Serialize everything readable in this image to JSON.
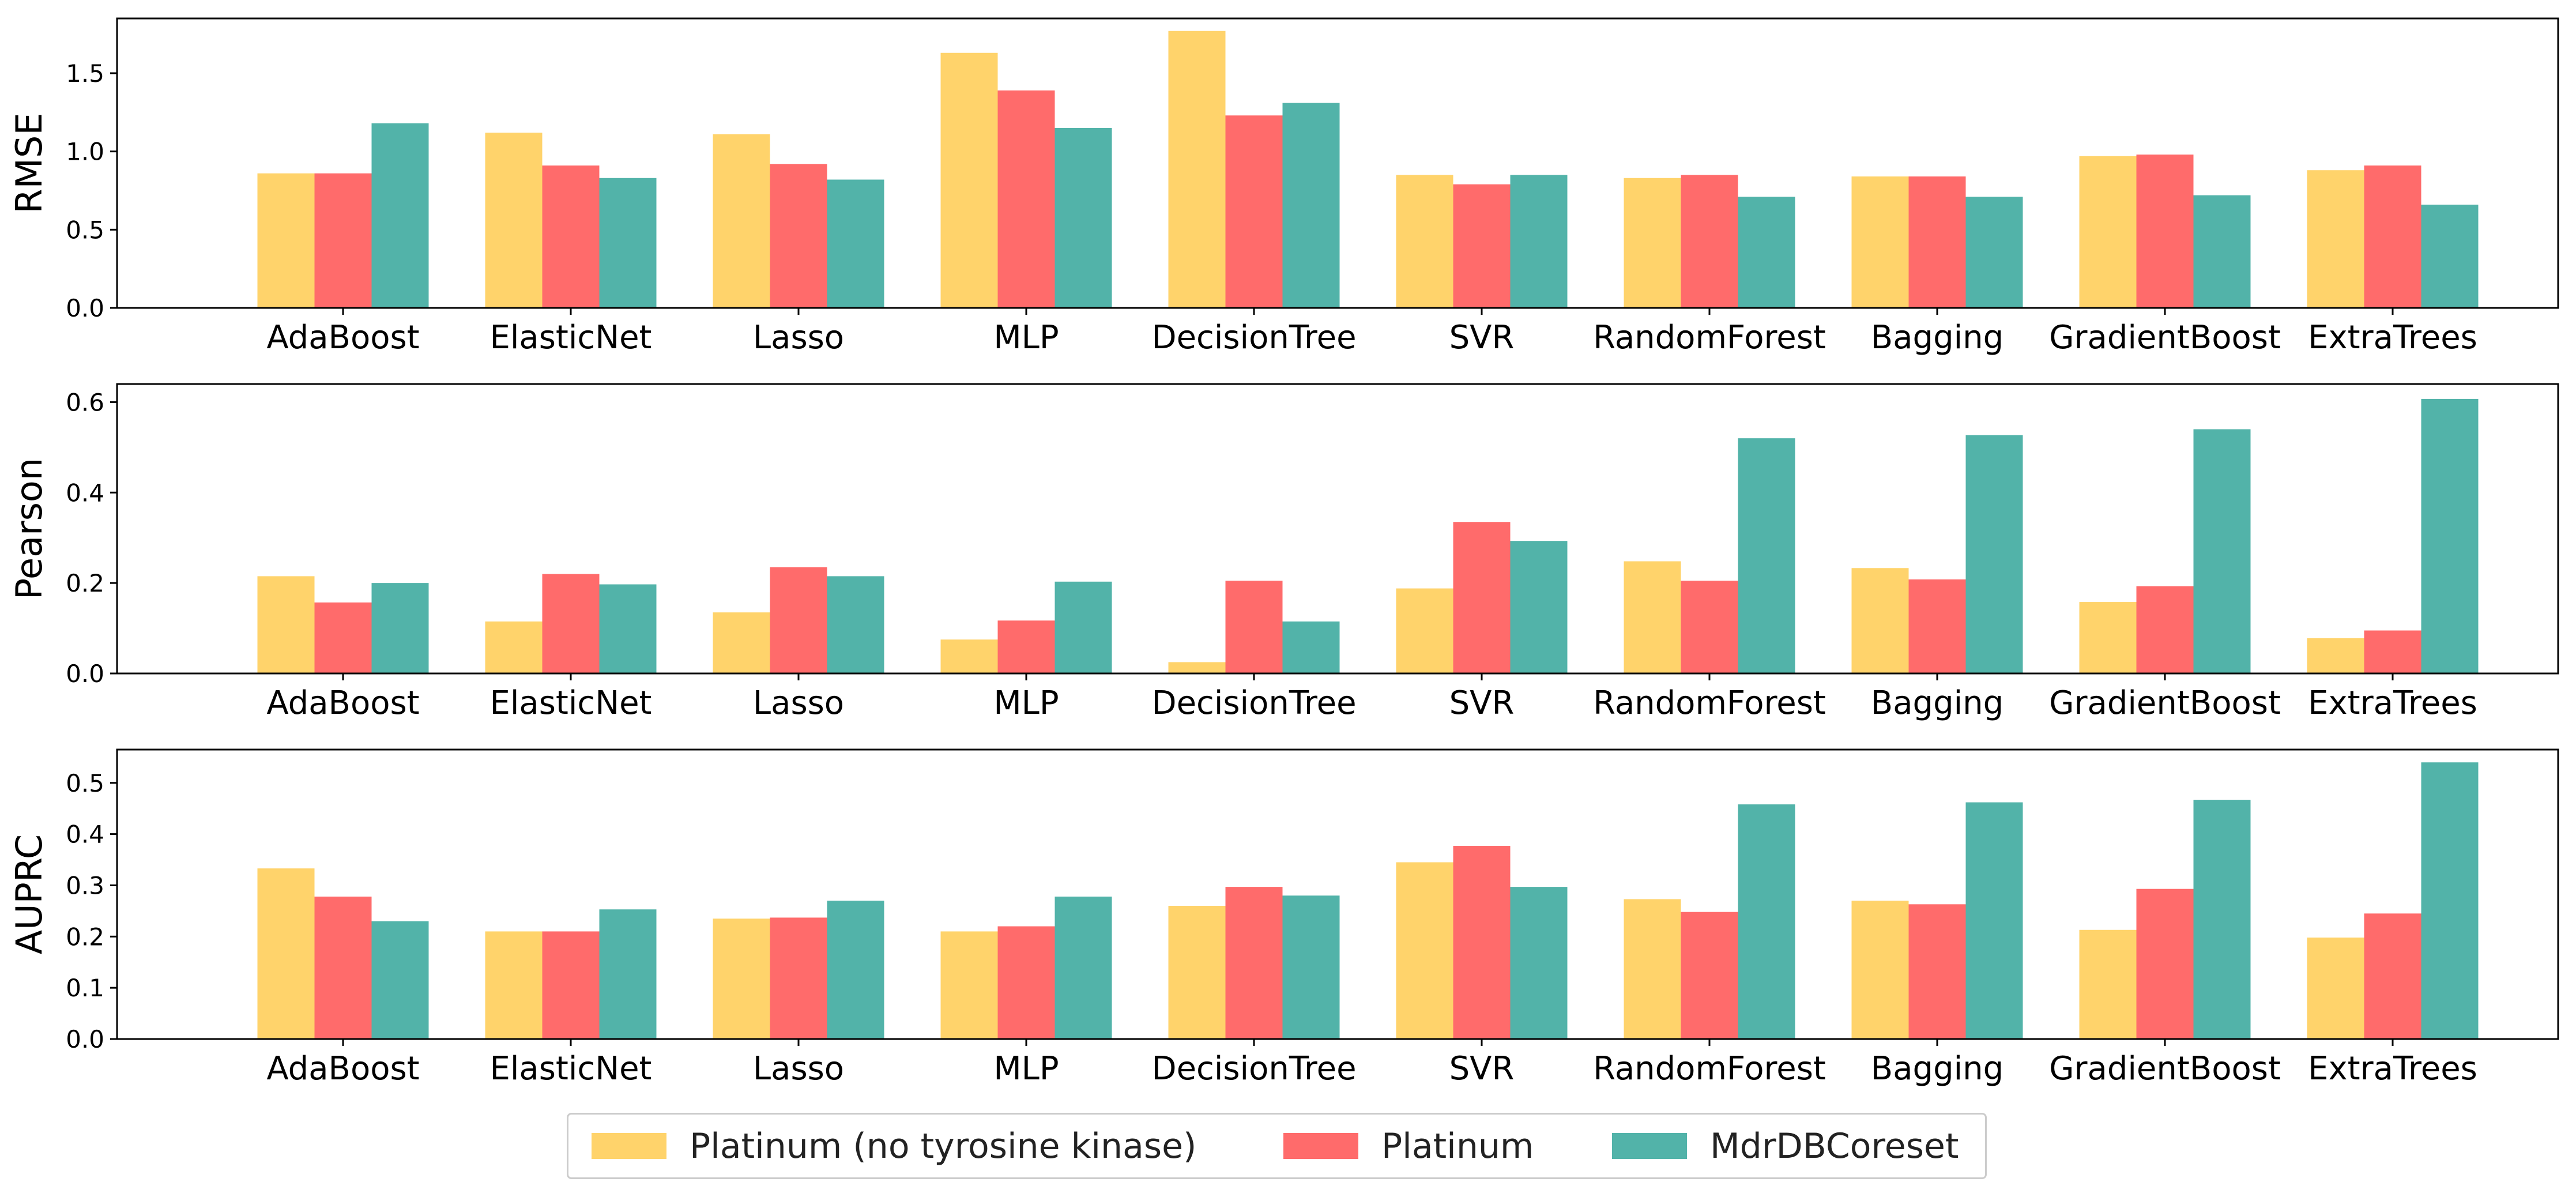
{
  "chart_data": [
    {
      "type": "bar",
      "ylabel": "RMSE",
      "ylim": [
        0,
        1.85
      ],
      "yticks": [
        "0.0",
        "0.5",
        "1.0",
        "1.5"
      ],
      "categories": [
        "AdaBoost",
        "ElasticNet",
        "Lasso",
        "MLP",
        "DecisionTree",
        "SVR",
        "RandomForest",
        "Bagging",
        "GradientBoost",
        "ExtraTrees"
      ],
      "series": [
        {
          "name": "Platinum (no tyrosine kinase)",
          "color": "#FFD36B",
          "values": [
            0.86,
            1.12,
            1.11,
            1.63,
            1.77,
            0.85,
            0.83,
            0.84,
            0.97,
            0.88
          ]
        },
        {
          "name": "Platinum",
          "color": "#FF6B6B",
          "values": [
            0.86,
            0.91,
            0.92,
            1.39,
            1.23,
            0.79,
            0.85,
            0.84,
            0.98,
            0.91
          ]
        },
        {
          "name": "MdrDBCoreset",
          "color": "#52B3A9",
          "values": [
            1.18,
            0.83,
            0.82,
            1.15,
            1.31,
            0.85,
            0.71,
            0.71,
            0.72,
            0.66
          ]
        }
      ]
    },
    {
      "type": "bar",
      "ylabel": "Pearson",
      "ylim": [
        0,
        0.64
      ],
      "yticks": [
        "0.0",
        "0.2",
        "0.4",
        "0.6"
      ],
      "categories": [
        "AdaBoost",
        "ElasticNet",
        "Lasso",
        "MLP",
        "DecisionTree",
        "SVR",
        "RandomForest",
        "Bagging",
        "GradientBoost",
        "ExtraTrees"
      ],
      "series": [
        {
          "name": "Platinum (no tyrosine kinase)",
          "color": "#FFD36B",
          "values": [
            0.215,
            0.115,
            0.135,
            0.075,
            0.025,
            0.188,
            0.248,
            0.233,
            0.158,
            0.078
          ]
        },
        {
          "name": "Platinum",
          "color": "#FF6B6B",
          "values": [
            0.157,
            0.22,
            0.235,
            0.117,
            0.205,
            0.335,
            0.205,
            0.208,
            0.193,
            0.095
          ]
        },
        {
          "name": "MdrDBCoreset",
          "color": "#52B3A9",
          "values": [
            0.2,
            0.197,
            0.215,
            0.203,
            0.115,
            0.293,
            0.52,
            0.527,
            0.54,
            0.607
          ]
        }
      ]
    },
    {
      "type": "bar",
      "ylabel": "AUPRC",
      "ylim": [
        0,
        0.565
      ],
      "yticks": [
        "0.0",
        "0.1",
        "0.2",
        "0.3",
        "0.4",
        "0.5"
      ],
      "categories": [
        "AdaBoost",
        "ElasticNet",
        "Lasso",
        "MLP",
        "DecisionTree",
        "SVR",
        "RandomForest",
        "Bagging",
        "GradientBoost",
        "ExtraTrees"
      ],
      "series": [
        {
          "name": "Platinum (no tyrosine kinase)",
          "color": "#FFD36B",
          "values": [
            0.333,
            0.21,
            0.235,
            0.21,
            0.26,
            0.345,
            0.273,
            0.27,
            0.213,
            0.198
          ]
        },
        {
          "name": "Platinum",
          "color": "#FF6B6B",
          "values": [
            0.278,
            0.21,
            0.237,
            0.22,
            0.297,
            0.377,
            0.248,
            0.263,
            0.293,
            0.245
          ]
        },
        {
          "name": "MdrDBCoreset",
          "color": "#52B3A9",
          "values": [
            0.23,
            0.253,
            0.27,
            0.278,
            0.28,
            0.297,
            0.458,
            0.462,
            0.467,
            0.54
          ]
        }
      ]
    }
  ],
  "legend": {
    "placement": "bottom-center",
    "items": [
      "Platinum (no tyrosine kinase)",
      "Platinum",
      "MdrDBCoreset"
    ]
  }
}
